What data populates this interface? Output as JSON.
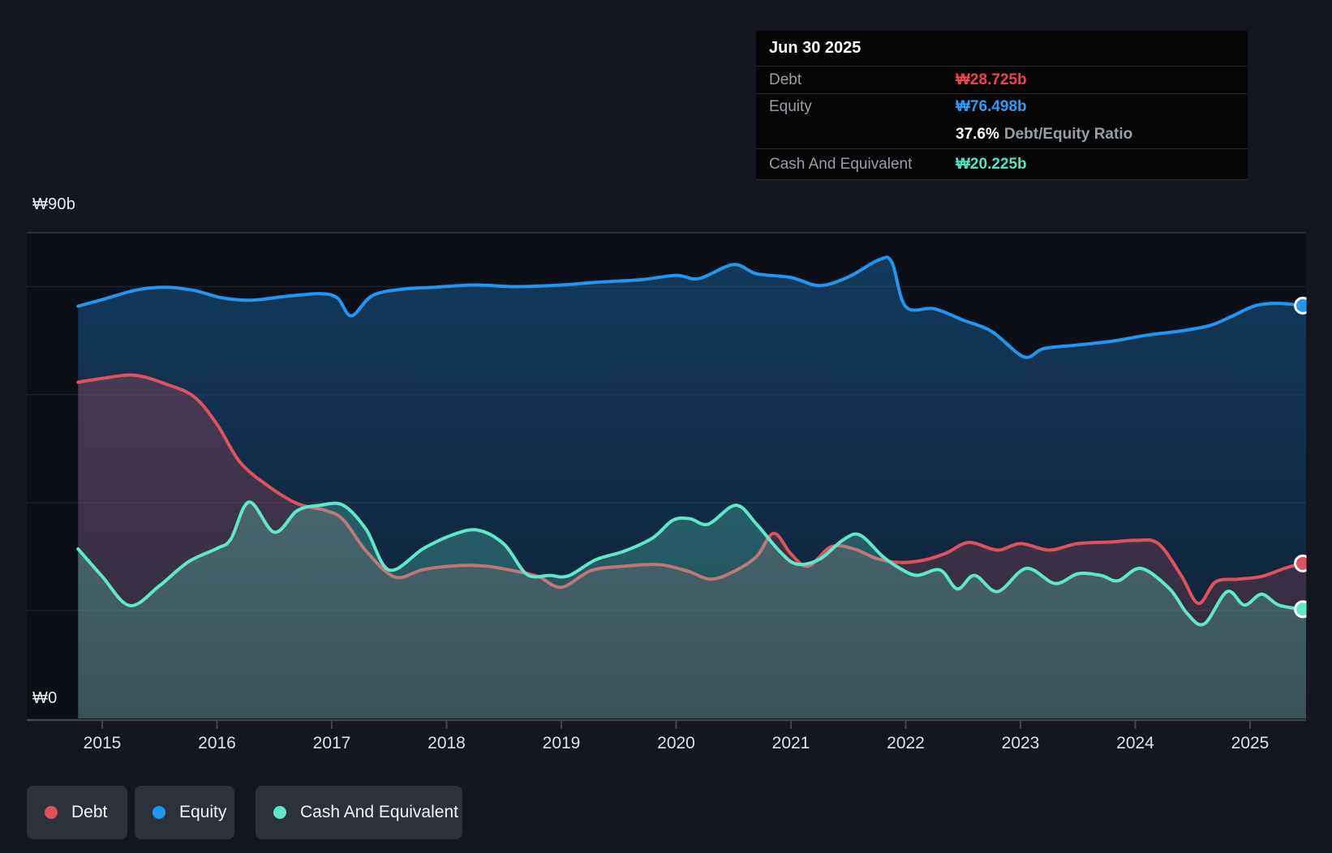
{
  "tooltip": {
    "title": "Jun 30 2025",
    "debt_label": "Debt",
    "debt_value": "₩28.725b",
    "equity_label": "Equity",
    "equity_value": "₩76.498b",
    "ratio_value": "37.6%",
    "ratio_label": "Debt/Equity Ratio",
    "cash_label": "Cash And Equivalent",
    "cash_value": "₩20.225b"
  },
  "y_axis": {
    "top": "₩90b",
    "zero": "₩0"
  },
  "legend": {
    "debt": "Debt",
    "equity": "Equity",
    "cash": "Cash And Equivalent"
  },
  "colors": {
    "debt": "#e0515f",
    "equity": "#2196f3",
    "cash": "#5fe8c8",
    "debt_value_text": "#ef4351",
    "equity_value_text": "#2e9bf6",
    "cash_value_text": "#4fe3c0",
    "plot_bg": "#0c0f16",
    "page_bg": "#14171f",
    "gridline": "rgba(255,255,255,0.07)",
    "gridline_top": "rgba(255,255,255,0.16)",
    "axis_line": "#40454d"
  },
  "chart_data": {
    "type": "area",
    "title": "",
    "x_labels": [
      "2015",
      "2016",
      "2017",
      "2018",
      "2019",
      "2020",
      "2021",
      "2022",
      "2023",
      "2024",
      "2025"
    ],
    "x_range": [
      2014.79,
      2025.52
    ],
    "y_range": [
      0,
      90
    ],
    "y_top_gridline_value": 90,
    "y_gridline_values": [
      20,
      40,
      60,
      80,
      90
    ],
    "grid": true,
    "legend_position": "bottom-left",
    "unit": "₩ billions",
    "series": [
      {
        "name": "Equity",
        "color": "#2196f3",
        "end_value": 76.498,
        "points": [
          [
            2014.79,
            76.4
          ],
          [
            2015.0,
            77.6
          ],
          [
            2015.3,
            79.4
          ],
          [
            2015.55,
            79.9
          ],
          [
            2015.8,
            79.3
          ],
          [
            2016.05,
            77.9
          ],
          [
            2016.3,
            77.5
          ],
          [
            2016.6,
            78.2
          ],
          [
            2016.9,
            78.7
          ],
          [
            2017.05,
            77.9
          ],
          [
            2017.17,
            74.6
          ],
          [
            2017.35,
            78.3
          ],
          [
            2017.6,
            79.5
          ],
          [
            2017.9,
            79.9
          ],
          [
            2018.25,
            80.3
          ],
          [
            2018.6,
            80.0
          ],
          [
            2019.0,
            80.3
          ],
          [
            2019.3,
            80.8
          ],
          [
            2019.7,
            81.3
          ],
          [
            2020.0,
            82.1
          ],
          [
            2020.2,
            81.5
          ],
          [
            2020.5,
            84.1
          ],
          [
            2020.7,
            82.4
          ],
          [
            2021.0,
            81.7
          ],
          [
            2021.25,
            80.2
          ],
          [
            2021.5,
            81.8
          ],
          [
            2021.77,
            85.0
          ],
          [
            2021.88,
            84.5
          ],
          [
            2022.0,
            76.3
          ],
          [
            2022.25,
            75.9
          ],
          [
            2022.5,
            73.8
          ],
          [
            2022.75,
            71.7
          ],
          [
            2023.03,
            67.0
          ],
          [
            2023.2,
            68.5
          ],
          [
            2023.5,
            69.2
          ],
          [
            2023.8,
            69.9
          ],
          [
            2024.1,
            71.0
          ],
          [
            2024.4,
            71.8
          ],
          [
            2024.65,
            72.8
          ],
          [
            2024.85,
            74.6
          ],
          [
            2025.05,
            76.5
          ],
          [
            2025.25,
            76.9
          ],
          [
            2025.46,
            76.498
          ]
        ]
      },
      {
        "name": "Debt",
        "color": "#e0515f",
        "end_value": 28.725,
        "points": [
          [
            2014.79,
            62.3
          ],
          [
            2015.0,
            63.0
          ],
          [
            2015.28,
            63.6
          ],
          [
            2015.55,
            62.0
          ],
          [
            2015.8,
            59.6
          ],
          [
            2016.0,
            54.5
          ],
          [
            2016.2,
            47.5
          ],
          [
            2016.45,
            43.0
          ],
          [
            2016.7,
            39.8
          ],
          [
            2016.95,
            38.5
          ],
          [
            2017.1,
            36.8
          ],
          [
            2017.3,
            31.0
          ],
          [
            2017.55,
            26.2
          ],
          [
            2017.8,
            27.6
          ],
          [
            2018.1,
            28.3
          ],
          [
            2018.35,
            28.2
          ],
          [
            2018.6,
            27.3
          ],
          [
            2018.8,
            26.3
          ],
          [
            2019.0,
            24.3
          ],
          [
            2019.26,
            27.4
          ],
          [
            2019.55,
            28.2
          ],
          [
            2019.85,
            28.5
          ],
          [
            2020.1,
            27.3
          ],
          [
            2020.3,
            25.8
          ],
          [
            2020.5,
            27.2
          ],
          [
            2020.7,
            30.0
          ],
          [
            2020.85,
            34.3
          ],
          [
            2021.0,
            30.5
          ],
          [
            2021.15,
            28.2
          ],
          [
            2021.35,
            31.8
          ],
          [
            2021.55,
            31.4
          ],
          [
            2021.75,
            29.6
          ],
          [
            2021.95,
            28.9
          ],
          [
            2022.15,
            29.3
          ],
          [
            2022.35,
            30.6
          ],
          [
            2022.55,
            32.6
          ],
          [
            2022.8,
            31.2
          ],
          [
            2023.0,
            32.4
          ],
          [
            2023.25,
            31.2
          ],
          [
            2023.5,
            32.4
          ],
          [
            2023.8,
            32.7
          ],
          [
            2024.0,
            33.0
          ],
          [
            2024.2,
            32.4
          ],
          [
            2024.4,
            26.5
          ],
          [
            2024.55,
            21.3
          ],
          [
            2024.7,
            25.3
          ],
          [
            2024.9,
            25.8
          ],
          [
            2025.1,
            26.3
          ],
          [
            2025.3,
            27.8
          ],
          [
            2025.46,
            28.725
          ]
        ]
      },
      {
        "name": "Cash And Equivalent",
        "color": "#5fe8c8",
        "end_value": 20.225,
        "points": [
          [
            2014.79,
            31.4
          ],
          [
            2015.0,
            26.3
          ],
          [
            2015.24,
            20.9
          ],
          [
            2015.5,
            24.6
          ],
          [
            2015.75,
            29.0
          ],
          [
            2016.0,
            31.5
          ],
          [
            2016.12,
            33.2
          ],
          [
            2016.28,
            40.1
          ],
          [
            2016.5,
            34.5
          ],
          [
            2016.7,
            38.5
          ],
          [
            2016.9,
            39.5
          ],
          [
            2017.1,
            39.5
          ],
          [
            2017.3,
            35.0
          ],
          [
            2017.5,
            27.5
          ],
          [
            2017.8,
            31.5
          ],
          [
            2018.05,
            34.0
          ],
          [
            2018.27,
            34.9
          ],
          [
            2018.5,
            32.3
          ],
          [
            2018.7,
            26.7
          ],
          [
            2018.9,
            26.5
          ],
          [
            2019.06,
            26.4
          ],
          [
            2019.3,
            29.4
          ],
          [
            2019.55,
            31.0
          ],
          [
            2019.8,
            33.5
          ],
          [
            2019.97,
            36.7
          ],
          [
            2020.12,
            37.0
          ],
          [
            2020.28,
            36.0
          ],
          [
            2020.52,
            39.5
          ],
          [
            2020.7,
            36.0
          ],
          [
            2020.9,
            31.0
          ],
          [
            2021.05,
            28.6
          ],
          [
            2021.25,
            29.5
          ],
          [
            2021.45,
            33.0
          ],
          [
            2021.6,
            34.0
          ],
          [
            2021.8,
            30.0
          ],
          [
            2021.95,
            27.8
          ],
          [
            2022.1,
            26.5
          ],
          [
            2022.3,
            27.5
          ],
          [
            2022.45,
            24.0
          ],
          [
            2022.6,
            26.5
          ],
          [
            2022.8,
            23.5
          ],
          [
            2023.05,
            27.8
          ],
          [
            2023.3,
            25.0
          ],
          [
            2023.5,
            26.8
          ],
          [
            2023.7,
            26.5
          ],
          [
            2023.85,
            25.5
          ],
          [
            2024.05,
            27.8
          ],
          [
            2024.3,
            24.0
          ],
          [
            2024.45,
            19.5
          ],
          [
            2024.6,
            17.5
          ],
          [
            2024.8,
            23.5
          ],
          [
            2024.95,
            21.0
          ],
          [
            2025.1,
            23.0
          ],
          [
            2025.25,
            21.0
          ],
          [
            2025.46,
            20.225
          ]
        ]
      }
    ]
  }
}
